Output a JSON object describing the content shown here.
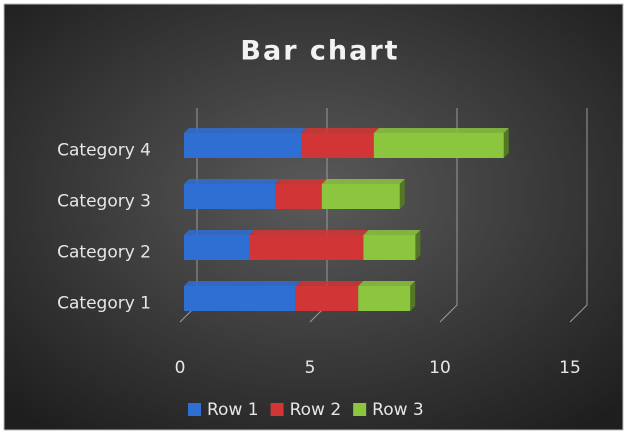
{
  "chart_data": {
    "type": "bar",
    "orientation": "horizontal",
    "stacked": true,
    "title": "Bar chart",
    "categories": [
      "Category 1",
      "Category 2",
      "Category 3",
      "Category 4"
    ],
    "series": [
      {
        "name": "Row 1",
        "color": "#2f6fd3",
        "values": [
          4.3,
          2.5,
          3.5,
          4.5
        ]
      },
      {
        "name": "Row 2",
        "color": "#d23535",
        "values": [
          2.4,
          4.4,
          1.8,
          2.8
        ]
      },
      {
        "name": "Row 3",
        "color": "#8cc63f",
        "values": [
          2,
          2,
          3,
          5
        ]
      }
    ],
    "xlim": [
      0,
      15
    ],
    "xticks": [
      0,
      5,
      10,
      15
    ],
    "grid": true,
    "legend": "bottom"
  }
}
